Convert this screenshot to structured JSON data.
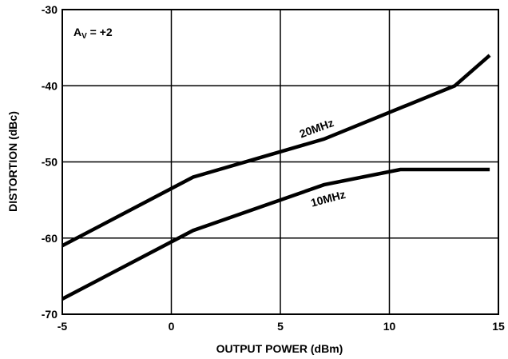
{
  "chart_data": {
    "type": "line",
    "xlabel": "OUTPUT POWER (dBm)",
    "ylabel": "DISTORTION (dBc)",
    "xlim": [
      -5,
      15
    ],
    "ylim": [
      -70,
      -30
    ],
    "x_ticks": [
      "-5",
      "0",
      "5",
      "10",
      "15"
    ],
    "y_ticks": [
      "-30",
      "-40",
      "-50",
      "-60",
      "-70"
    ],
    "grid": true,
    "annotation": {
      "main": "A",
      "sub": "V",
      "rest": " = +2"
    },
    "series": [
      {
        "name": "20MHz",
        "x": [
          -5,
          1,
          7,
          13,
          14.6
        ],
        "y": [
          -61,
          -52,
          -47,
          -40,
          -36
        ]
      },
      {
        "name": "10MHz",
        "x": [
          -5,
          1,
          7,
          10.5,
          14.6
        ],
        "y": [
          -68,
          -59,
          -53,
          -51,
          -51
        ]
      }
    ]
  }
}
